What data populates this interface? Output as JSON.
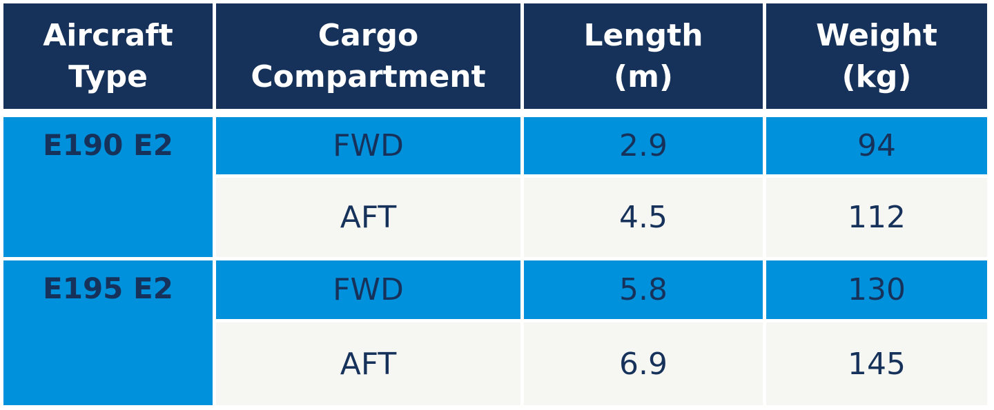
{
  "headers": {
    "aircraft_type": [
      "Aircraft",
      "Type"
    ],
    "cargo_compartment": [
      "Cargo",
      "Compartment"
    ],
    "length": [
      "Length",
      "(m)"
    ],
    "weight": [
      "Weight",
      "(kg)"
    ]
  },
  "groups": [
    {
      "aircraft": "E190 E2",
      "rows": [
        {
          "compartment": "FWD",
          "length": "2.9",
          "weight": "94"
        },
        {
          "compartment": "AFT",
          "length": "4.5",
          "weight": "112"
        }
      ]
    },
    {
      "aircraft": "E195 E2",
      "rows": [
        {
          "compartment": "FWD",
          "length": "5.8",
          "weight": "130"
        },
        {
          "compartment": "AFT",
          "length": "6.9",
          "weight": "145"
        }
      ]
    }
  ],
  "colors": {
    "header_bg": "#17325a",
    "accent_blue": "#0091dc",
    "light_row": "#f6f6f3",
    "text_dark": "#17325a"
  }
}
